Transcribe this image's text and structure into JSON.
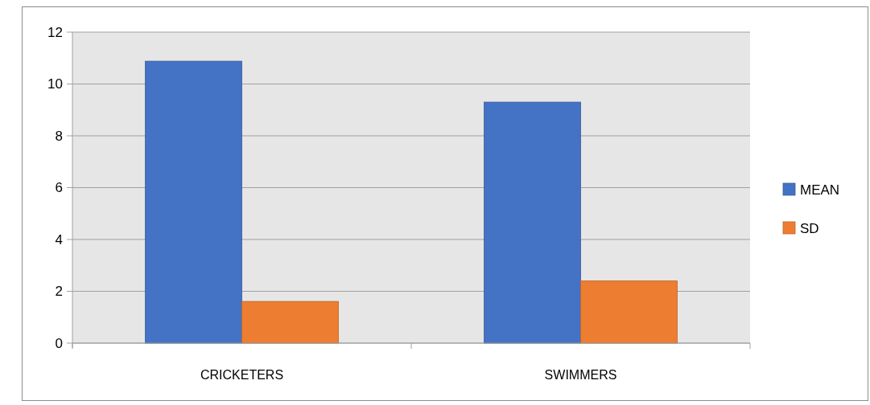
{
  "chart_data": {
    "type": "bar",
    "categories": [
      "CRICKETERS",
      "SWIMMERS"
    ],
    "series": [
      {
        "name": "MEAN",
        "color": "#4472c4",
        "values": [
          10.88,
          9.3
        ]
      },
      {
        "name": "SD",
        "color": "#ed7d31",
        "values": [
          1.61,
          2.4
        ]
      }
    ],
    "ylim": [
      0,
      12
    ],
    "yticks": [
      0,
      2,
      4,
      6,
      8,
      10,
      12
    ],
    "grid": "y",
    "legend": "right"
  }
}
